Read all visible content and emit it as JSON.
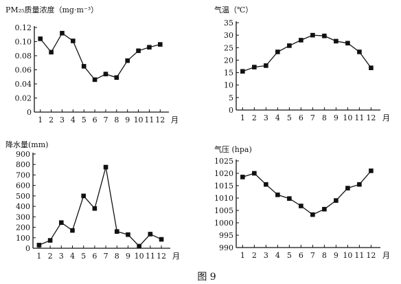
{
  "figure": {
    "caption": "图 9"
  },
  "chart_data": [
    {
      "type": "line",
      "title": "",
      "ylabel": "PM₂₅质量浓度（mg·m⁻³）",
      "xlabel": "",
      "x_unit": "月",
      "categories": [
        "1",
        "2",
        "3",
        "4",
        "5",
        "6",
        "7",
        "8",
        "9",
        "10",
        "11",
        "12"
      ],
      "y_ticks": [
        "0",
        "0.02",
        "0.04",
        "0.06",
        "0.08",
        "0.10",
        "0.12"
      ],
      "ylim": [
        0,
        0.12
      ],
      "series": [
        {
          "values": [
            0.104,
            0.085,
            0.112,
            0.101,
            0.065,
            0.046,
            0.054,
            0.049,
            0.073,
            0.087,
            0.092,
            0.096
          ]
        }
      ],
      "marker": "square",
      "grid": false
    },
    {
      "type": "line",
      "title": "",
      "ylabel": "气温（℃）",
      "xlabel": "",
      "x_unit": "月",
      "categories": [
        "1",
        "2",
        "3",
        "4",
        "5",
        "6",
        "7",
        "8",
        "9",
        "10",
        "11",
        "12"
      ],
      "y_ticks": [
        "0",
        "5",
        "10",
        "15",
        "20",
        "25",
        "30",
        "35"
      ],
      "ylim": [
        0,
        35
      ],
      "series": [
        {
          "values": [
            15.5,
            17.2,
            17.8,
            23.3,
            25.8,
            28.0,
            30.0,
            29.7,
            27.6,
            26.8,
            23.3,
            16.9
          ]
        }
      ],
      "marker": "square",
      "grid": false
    },
    {
      "type": "line",
      "title": "",
      "ylabel": "降水量(mm)",
      "xlabel": "",
      "x_unit": "月",
      "categories": [
        "1",
        "2",
        "3",
        "4",
        "5",
        "6",
        "7",
        "8",
        "9",
        "10",
        "11",
        "12"
      ],
      "y_ticks": [
        "0",
        "100",
        "200",
        "300",
        "400",
        "500",
        "600",
        "700",
        "800",
        "900"
      ],
      "ylim": [
        0,
        900
      ],
      "series": [
        {
          "values": [
            30,
            75,
            245,
            170,
            500,
            380,
            775,
            160,
            130,
            20,
            135,
            85
          ]
        }
      ],
      "marker": "square",
      "grid": false
    },
    {
      "type": "line",
      "title": "",
      "ylabel": "气压 (hpa)",
      "xlabel": "",
      "x_unit": "月",
      "categories": [
        "1",
        "2",
        "3",
        "4",
        "5",
        "6",
        "7",
        "8",
        "9",
        "10",
        "11",
        "12"
      ],
      "y_ticks": [
        "990",
        "995",
        "1000",
        "1005",
        "1010",
        "1015",
        "1020",
        "1025"
      ],
      "ylim": [
        990,
        1025
      ],
      "series": [
        {
          "values": [
            1018.5,
            1020.0,
            1015.5,
            1011.3,
            1009.8,
            1006.8,
            1003.3,
            1005.5,
            1009.0,
            1014.0,
            1015.5,
            1021.0
          ]
        }
      ],
      "marker": "square",
      "grid": false
    }
  ]
}
